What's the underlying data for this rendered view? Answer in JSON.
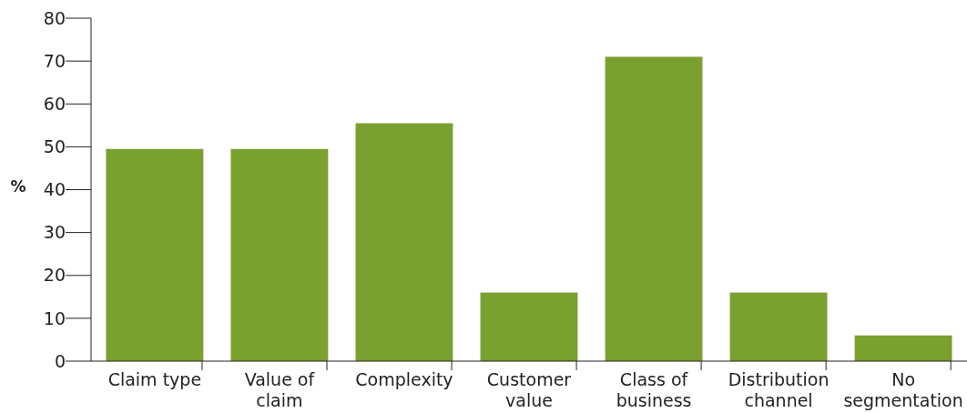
{
  "chart_data": {
    "type": "bar",
    "ylabel": "%",
    "categories": [
      "Claim type",
      "Value of claim",
      "Complexity",
      "Customer value",
      "Class of business",
      "Distribution channel",
      "No segmentation"
    ],
    "values": [
      49.5,
      49.5,
      55.5,
      16,
      71,
      16,
      6
    ],
    "color": "#7aa030",
    "ylim": [
      0,
      80
    ],
    "yticks": [
      0,
      10,
      20,
      30,
      40,
      50,
      60,
      70,
      80
    ],
    "grid": false
  }
}
